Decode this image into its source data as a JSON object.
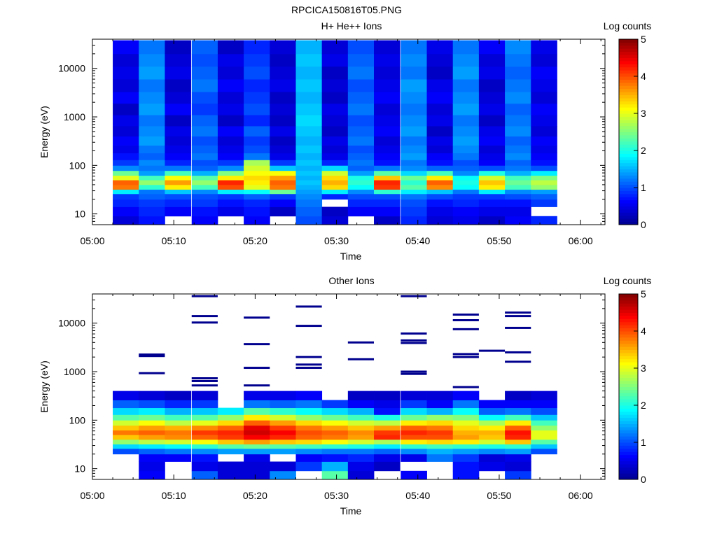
{
  "figure_title": "RPCICA150816T05.PNG",
  "colormap": [
    "#00008f",
    "#0000ff",
    "#0080ff",
    "#00ffff",
    "#80ff80",
    "#ffff00",
    "#ff8000",
    "#ff0000",
    "#800000"
  ],
  "chart_data": [
    {
      "type": "heatmap",
      "title": "H+ He++ Ions",
      "xlabel": "Time",
      "ylabel": "Energy (eV)",
      "x_ticks": [
        "05:00",
        "05:10",
        "05:20",
        "05:30",
        "05:40",
        "05:50",
        "06:00"
      ],
      "x_range_minutes": [
        0,
        63
      ],
      "y_scale": "log",
      "y_range": [
        6,
        40000
      ],
      "y_ticks": [
        {
          "value": 10,
          "label": "10"
        },
        {
          "value": 100,
          "label": "100"
        },
        {
          "value": 1000,
          "label": "1000"
        },
        {
          "value": 10000,
          "label": "10000"
        }
      ],
      "colorbar": {
        "label": "Log counts",
        "range": [
          0,
          5
        ],
        "ticks": [
          "0",
          "1",
          "2",
          "3",
          "4",
          "5"
        ]
      },
      "scan_start_minutes": [
        2.5,
        5.7,
        8.9,
        12.2,
        15.4,
        18.6,
        21.8,
        25.0,
        28.2,
        31.4,
        34.6,
        37.9,
        41.1,
        44.3,
        47.5,
        50.7,
        53.9
      ],
      "scan_duration_minutes": 3.2,
      "energy_bins": [
        {
          "lo": 6,
          "hi": 9
        },
        {
          "lo": 9,
          "hi": 14
        },
        {
          "lo": 14,
          "hi": 20
        },
        {
          "lo": 20,
          "hi": 26
        },
        {
          "lo": 26,
          "hi": 32
        },
        {
          "lo": 32,
          "hi": 40
        },
        {
          "lo": 40,
          "hi": 50
        },
        {
          "lo": 50,
          "hi": 62
        },
        {
          "lo": 62,
          "hi": 78
        },
        {
          "lo": 78,
          "hi": 100
        },
        {
          "lo": 100,
          "hi": 130
        },
        {
          "lo": 130,
          "hi": 180
        },
        {
          "lo": 180,
          "hi": 260
        },
        {
          "lo": 260,
          "hi": 400
        },
        {
          "lo": 400,
          "hi": 650
        },
        {
          "lo": 650,
          "hi": 1100
        },
        {
          "lo": 1100,
          "hi": 1900
        },
        {
          "lo": 1900,
          "hi": 3300
        },
        {
          "lo": 3300,
          "hi": 6000
        },
        {
          "lo": 6000,
          "hi": 11000
        },
        {
          "lo": 11000,
          "hi": 20000
        },
        {
          "lo": 20000,
          "hi": 38000
        }
      ],
      "log_counts": [
        [
          0.4,
          0.6,
          0.8,
          0.9,
          1.8,
          3.8,
          3.9,
          3.0,
          2.4,
          1.3,
          0.9,
          0.7,
          0.5,
          0.6,
          0.4,
          0.5,
          0.3,
          0.6,
          0.4,
          0.5,
          0.4,
          0.6
        ],
        [
          0.7,
          0.8,
          0.9,
          1.1,
          1.2,
          2.1,
          2.6,
          2.2,
          1.4,
          1.2,
          1.3,
          1.1,
          1.2,
          1.4,
          1.3,
          1.2,
          1.4,
          1.3,
          1.2,
          1.4,
          1.3,
          1.2
        ],
        [
          null,
          0.6,
          0.8,
          1.0,
          1.6,
          3.2,
          3.6,
          3.1,
          2.2,
          1.2,
          0.8,
          0.6,
          0.5,
          0.4,
          0.5,
          0.3,
          0.6,
          0.4,
          0.3,
          0.5,
          0.4,
          0.3
        ],
        [
          0.6,
          0.7,
          0.9,
          1.0,
          1.3,
          2.2,
          2.6,
          2.3,
          1.5,
          1.1,
          1.0,
          1.2,
          1.1,
          1.0,
          1.2,
          1.1,
          0.9,
          1.0,
          1.2,
          1.1,
          1.0,
          1.1
        ],
        [
          null,
          0.5,
          0.7,
          0.9,
          1.8,
          4.0,
          4.2,
          3.2,
          2.5,
          1.3,
          0.9,
          0.6,
          0.5,
          0.4,
          0.6,
          0.3,
          0.5,
          0.4,
          0.6,
          0.4,
          0.5,
          0.3
        ],
        [
          0.6,
          0.7,
          0.8,
          1.1,
          1.9,
          3.0,
          3.2,
          3.3,
          3.1,
          2.9,
          2.7,
          1.2,
          1.0,
          0.9,
          1.1,
          0.8,
          1.0,
          0.9,
          0.8,
          1.0,
          0.9,
          0.8
        ],
        [
          null,
          0.3,
          0.6,
          0.9,
          2.4,
          3.8,
          3.9,
          3.6,
          3.1,
          1.6,
          0.9,
          0.5,
          0.4,
          0.3,
          0.5,
          0.3,
          0.4,
          0.3,
          0.5,
          0.4,
          0.3,
          0.4
        ],
        [
          1.0,
          1.1,
          1.2,
          1.3,
          1.4,
          1.5,
          1.6,
          1.5,
          1.6,
          1.5,
          1.6,
          1.5,
          1.6,
          1.5,
          1.6,
          1.7,
          1.6,
          1.5,
          1.6,
          1.5,
          1.6,
          1.5
        ],
        [
          0.4,
          0.3,
          null,
          0.8,
          1.8,
          3.3,
          3.5,
          3.3,
          2.9,
          1.7,
          0.8,
          0.5,
          0.4,
          0.5,
          0.3,
          0.4,
          0.5,
          0.3,
          0.4,
          0.3,
          0.5,
          0.4
        ],
        [
          null,
          0.6,
          0.8,
          1.0,
          1.3,
          1.9,
          2.1,
          2.0,
          1.4,
          1.1,
          1.2,
          1.1,
          1.0,
          1.2,
          1.1,
          1.0,
          1.2,
          1.1,
          1.0,
          1.2,
          1.1,
          1.0
        ],
        [
          0.3,
          0.6,
          0.8,
          1.0,
          2.1,
          4.1,
          4.2,
          3.4,
          2.3,
          1.2,
          0.7,
          0.6,
          0.5,
          0.4,
          0.6,
          0.5,
          0.4,
          0.6,
          0.5,
          0.4,
          0.5,
          0.4
        ],
        [
          0.8,
          0.9,
          1.0,
          1.2,
          1.8,
          2.3,
          2.1,
          2.4,
          1.7,
          1.3,
          1.2,
          1.4,
          1.3,
          1.2,
          1.4,
          1.3,
          1.2,
          1.3,
          1.4,
          1.2,
          1.3,
          1.2
        ],
        [
          0.4,
          0.5,
          0.7,
          1.0,
          1.6,
          3.7,
          3.9,
          3.2,
          2.2,
          1.1,
          0.7,
          0.6,
          0.4,
          0.5,
          0.3,
          0.5,
          0.4,
          0.6,
          0.5,
          0.3,
          0.4,
          0.5
        ],
        [
          0.5,
          0.6,
          0.8,
          0.9,
          1.2,
          1.9,
          2.0,
          1.9,
          1.3,
          1.1,
          1.0,
          1.2,
          1.3,
          1.4,
          1.3,
          1.2,
          1.4,
          1.3,
          1.2,
          1.4,
          1.3,
          1.2
        ],
        [
          0.3,
          0.5,
          0.7,
          0.9,
          1.8,
          3.2,
          3.4,
          2.9,
          2.0,
          1.0,
          0.6,
          0.5,
          0.4,
          0.6,
          0.5,
          0.3,
          0.5,
          0.4,
          0.3,
          0.5,
          0.4,
          0.6
        ],
        [
          0.6,
          0.5,
          0.7,
          1.0,
          1.3,
          2.2,
          2.4,
          2.2,
          1.5,
          1.2,
          1.1,
          1.3,
          1.2,
          1.1,
          1.3,
          1.2,
          1.1,
          1.3,
          1.2,
          1.1,
          1.2,
          1.3
        ],
        [
          0.8,
          null,
          0.9,
          1.1,
          1.4,
          2.6,
          2.8,
          2.5,
          1.8,
          1.0,
          0.7,
          0.6,
          0.5,
          0.6,
          0.4,
          0.5,
          0.6,
          0.4,
          0.5,
          0.6,
          0.4,
          0.5
        ]
      ]
    },
    {
      "type": "heatmap",
      "title": "Other Ions",
      "xlabel": "Time",
      "ylabel": "Energy (eV)",
      "x_ticks": [
        "05:00",
        "05:10",
        "05:20",
        "05:30",
        "05:40",
        "05:50",
        "06:00"
      ],
      "x_range_minutes": [
        0,
        63
      ],
      "y_scale": "log",
      "y_range": [
        6,
        40000
      ],
      "y_ticks": [
        {
          "value": 10,
          "label": "10"
        },
        {
          "value": 100,
          "label": "100"
        },
        {
          "value": 1000,
          "label": "1000"
        },
        {
          "value": 10000,
          "label": "10000"
        }
      ],
      "colorbar": {
        "label": "Log counts",
        "range": [
          0,
          5
        ],
        "ticks": [
          "0",
          "1",
          "2",
          "3",
          "4",
          "5"
        ]
      },
      "scan_start_minutes": [
        2.5,
        5.7,
        8.9,
        12.2,
        15.4,
        18.6,
        21.8,
        25.0,
        28.2,
        31.4,
        34.6,
        37.9,
        41.1,
        44.3,
        47.5,
        50.7,
        53.9
      ],
      "scan_duration_minutes": 3.2,
      "energy_bins": [
        {
          "lo": 6,
          "hi": 9
        },
        {
          "lo": 9,
          "hi": 14
        },
        {
          "lo": 14,
          "hi": 20
        },
        {
          "lo": 20,
          "hi": 26
        },
        {
          "lo": 26,
          "hi": 32
        },
        {
          "lo": 32,
          "hi": 40
        },
        {
          "lo": 40,
          "hi": 50
        },
        {
          "lo": 50,
          "hi": 62
        },
        {
          "lo": 62,
          "hi": 78
        },
        {
          "lo": 78,
          "hi": 100
        },
        {
          "lo": 100,
          "hi": 130
        },
        {
          "lo": 130,
          "hi": 180
        },
        {
          "lo": 180,
          "hi": 260
        },
        {
          "lo": 260,
          "hi": 400
        }
      ],
      "log_counts": [
        [
          null,
          null,
          null,
          1.0,
          1.7,
          2.6,
          3.4,
          3.8,
          3.4,
          2.9,
          2.3,
          1.7,
          1.1,
          0.5
        ],
        [
          0.6,
          0.5,
          0.6,
          1.1,
          1.8,
          2.8,
          3.6,
          3.9,
          3.6,
          3.1,
          2.4,
          1.8,
          1.0,
          0.4
        ],
        [
          null,
          null,
          0.6,
          1.2,
          1.9,
          2.9,
          3.7,
          3.8,
          3.5,
          2.8,
          2.2,
          1.5,
          0.8,
          0.3
        ],
        [
          1.1,
          0.5,
          0.7,
          1.3,
          2.1,
          3.1,
          3.9,
          4.1,
          3.7,
          3.0,
          2.3,
          1.6,
          0.9,
          0.4
        ],
        [
          0.4,
          0.4,
          null,
          1.4,
          2.3,
          3.4,
          4.1,
          4.2,
          3.9,
          3.3,
          2.6,
          1.8,
          null,
          null
        ],
        [
          0.4,
          0.4,
          0.5,
          1.4,
          2.4,
          3.6,
          4.4,
          4.6,
          4.5,
          3.9,
          3.2,
          2.3,
          1.2,
          0.5
        ],
        [
          1.3,
          0.4,
          null,
          1.4,
          2.3,
          3.4,
          4.2,
          4.4,
          4.1,
          3.6,
          2.9,
          2.1,
          1.1,
          0.5
        ],
        [
          null,
          0.9,
          0.6,
          1.3,
          2.2,
          3.3,
          3.9,
          4.0,
          3.8,
          3.3,
          2.6,
          1.9,
          1.2,
          0.6
        ],
        [
          2.3,
          1.5,
          0.7,
          1.2,
          2.1,
          3.1,
          3.8,
          3.9,
          3.6,
          3.1,
          2.4,
          1.7,
          0.9,
          null
        ],
        [
          0.4,
          0.5,
          0.8,
          1.2,
          2.0,
          2.9,
          3.6,
          3.7,
          3.4,
          2.9,
          2.2,
          1.5,
          0.6,
          0.3
        ],
        [
          null,
          0.3,
          0.5,
          1.1,
          1.8,
          2.7,
          4.2,
          4.1,
          3.6,
          2.8,
          2.0,
          0.7,
          0.5,
          0.3
        ],
        [
          0.6,
          null,
          0.5,
          1.3,
          2.1,
          3.2,
          4.0,
          4.2,
          3.9,
          3.2,
          2.4,
          1.7,
          0.9,
          0.4
        ],
        [
          null,
          null,
          1.2,
          1.5,
          2.2,
          3.3,
          4.0,
          4.1,
          3.8,
          3.3,
          2.6,
          1.5,
          0.6,
          0.4
        ],
        [
          0.7,
          0.7,
          0.9,
          1.4,
          2.1,
          3.2,
          3.6,
          3.5,
          3.3,
          3.0,
          2.5,
          1.9,
          1.2,
          0.6
        ],
        [
          null,
          0.5,
          0.4,
          1.3,
          2.0,
          2.9,
          3.4,
          3.5,
          3.2,
          2.7,
          1.9,
          1.1,
          0.6,
          null
        ],
        [
          0.9,
          0.4,
          0.5,
          1.4,
          2.1,
          3.4,
          4.2,
          4.3,
          3.9,
          3.2,
          2.2,
          1.2,
          0.6,
          0.3
        ],
        [
          null,
          null,
          null,
          1.0,
          1.6,
          2.3,
          3.0,
          3.0,
          2.6,
          2.2,
          1.6,
          1.0,
          0.6,
          0.4
        ]
      ],
      "sparse_lines": [
        [],
        [
          930,
          2100,
          2250
        ],
        [],
        [
          520,
          640,
          730,
          10300,
          14000,
          36000
        ],
        [],
        [
          520,
          1200,
          3700,
          13000
        ],
        [],
        [
          1200,
          1400,
          2000,
          8800,
          22000
        ],
        [],
        [
          1800,
          4000
        ],
        [],
        [
          900,
          1000,
          3900,
          4400,
          6100,
          36000
        ],
        [],
        [
          480,
          2000,
          2300,
          7500,
          11500,
          15000
        ],
        [
          2700
        ],
        [
          1600,
          2500,
          8000,
          14000,
          16500
        ],
        []
      ]
    }
  ]
}
